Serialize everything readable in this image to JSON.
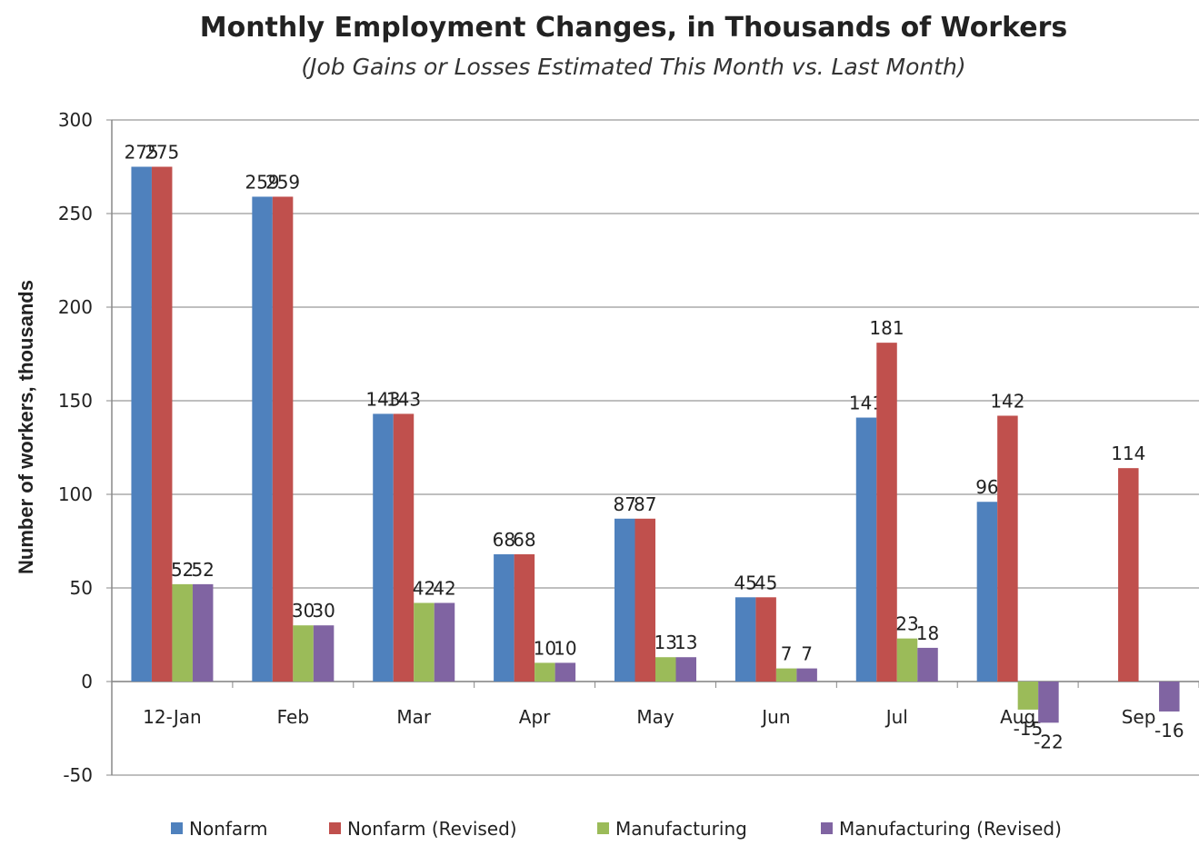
{
  "chart_data": {
    "type": "bar",
    "title": "Monthly Employment Changes, in Thousands of Workers",
    "subtitle": "(Job Gains or Losses Estimated This Month vs. Last Month)",
    "y_label": "Number of workers, thousands",
    "categories": [
      "12-Jan",
      "Feb",
      "Mar",
      "Apr",
      "May",
      "Jun",
      "Jul",
      "Aug",
      "Sep"
    ],
    "series": [
      {
        "name": "Nonfarm",
        "color": "#4f81bd",
        "values": [
          275,
          259,
          143,
          68,
          87,
          45,
          141,
          96,
          null
        ]
      },
      {
        "name": "Nonfarm (Revised)",
        "color": "#c0504d",
        "values": [
          275,
          259,
          143,
          68,
          87,
          45,
          181,
          142,
          114
        ]
      },
      {
        "name": "Manufacturing",
        "color": "#9bbb59",
        "values": [
          52,
          30,
          42,
          10,
          13,
          7,
          23,
          -15,
          null
        ]
      },
      {
        "name": "Manufacturing (Revised)",
        "color": "#8064a2",
        "values": [
          52,
          30,
          42,
          10,
          13,
          7,
          18,
          -22,
          -16
        ]
      }
    ],
    "ylim": [
      -50,
      300
    ],
    "yticks": [
      -50,
      0,
      50,
      100,
      150,
      200,
      250,
      300
    ],
    "grid": true,
    "legend": "bottom"
  }
}
